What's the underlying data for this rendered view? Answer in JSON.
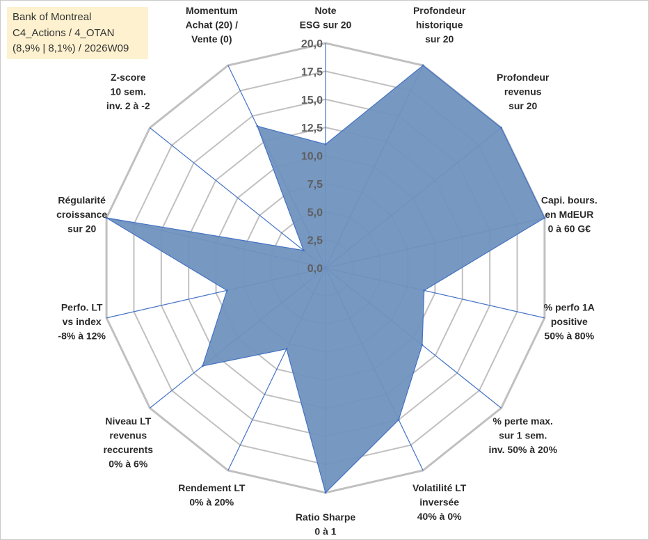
{
  "info_box": {
    "line1": "Bank of Montreal",
    "line2": "C4_Actions / 4_OTAN",
    "line3": "(8,9% | 8,1%) / 2026W09"
  },
  "colors": {
    "fill": "#7092be",
    "line": "#4472c4",
    "grid": "#c0c0c0",
    "info_bg": "#fdf1cf"
  },
  "chart_data": {
    "type": "radar",
    "title": "",
    "rmin": 0,
    "rmax": 20,
    "ticks": [
      "0,0",
      "2,5",
      "5,0",
      "7,5",
      "10,0",
      "12,5",
      "15,0",
      "17,5",
      "20,0"
    ],
    "tick_values": [
      0,
      2.5,
      5,
      7.5,
      10,
      12.5,
      15,
      17.5,
      20
    ],
    "axes": [
      {
        "lines": [
          "Note",
          "ESG sur 20"
        ],
        "value": 11
      },
      {
        "lines": [
          "Profondeur",
          "historique",
          "sur 20"
        ],
        "value": 20
      },
      {
        "lines": [
          "Profondeur",
          "revenus",
          "sur 20"
        ],
        "value": 20
      },
      {
        "lines": [
          "Capi. bours.",
          "en MdEUR",
          "0 à 60 G€"
        ],
        "value": 20
      },
      {
        "lines": [
          "% perfo 1A",
          "positive",
          "50% à 80%"
        ],
        "value": 9
      },
      {
        "lines": [
          "% perte max.",
          "sur 1 sem.",
          "inv. 50% à 20%"
        ],
        "value": 11
      },
      {
        "lines": [
          "Volatilité LT",
          "inversée",
          "40% à 0%"
        ],
        "value": 15
      },
      {
        "lines": [
          "Ratio Sharpe",
          "0 à 1"
        ],
        "value": 20
      },
      {
        "lines": [
          "Rendement LT",
          "0% à 20%"
        ],
        "value": 8
      },
      {
        "lines": [
          "Niveau LT",
          "revenus",
          "reccurents",
          "0% à 6%"
        ],
        "value": 14
      },
      {
        "lines": [
          "Perfo. LT",
          "vs index",
          "-8% à 12%"
        ],
        "value": 9
      },
      {
        "lines": [
          "Régularité",
          "croissance",
          "sur 20"
        ],
        "value": 20
      },
      {
        "lines": [
          "Z-score",
          "10 sem.",
          "inv. 2 à -2"
        ],
        "value": 2.5
      },
      {
        "lines": [
          "Momentum",
          "Achat (20) /",
          "Vente (0)"
        ],
        "value": 14
      }
    ]
  }
}
